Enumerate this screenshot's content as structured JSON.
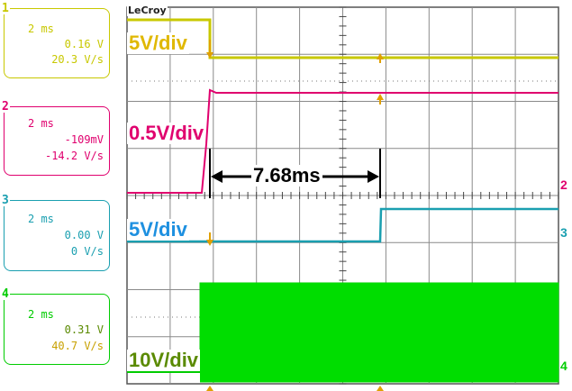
{
  "brand": "LeCroy",
  "channels": [
    {
      "num": "1",
      "time_div": "2 ms",
      "offset": "0.16 V",
      "slope": "20.3 V/s",
      "color": "#c8c800",
      "volts_div_label": "5V/div",
      "label_color": "#e0b800"
    },
    {
      "num": "2",
      "time_div": "2 ms",
      "offset": "-109mV",
      "slope": "-14.2 V/s",
      "color": "#e0006e",
      "volts_div_label": "0.5V/div",
      "label_color": "#e0006e"
    },
    {
      "num": "3",
      "time_div": "2 ms",
      "offset": "0.00 V",
      "slope": "0 V/s",
      "color": "#1a9fb0",
      "volts_div_label": "5V/div",
      "label_color": "#1e90e0"
    },
    {
      "num": "4",
      "time_div": "2 ms",
      "offset": "0.31 V",
      "slope": "40.7 V/s",
      "color": "#00cc00",
      "volts_div_label": "10V/div",
      "label_color": "#5a8a00"
    }
  ],
  "measurement": {
    "label": "7.68ms"
  },
  "right_markers": [
    "2",
    "3",
    "4"
  ]
}
